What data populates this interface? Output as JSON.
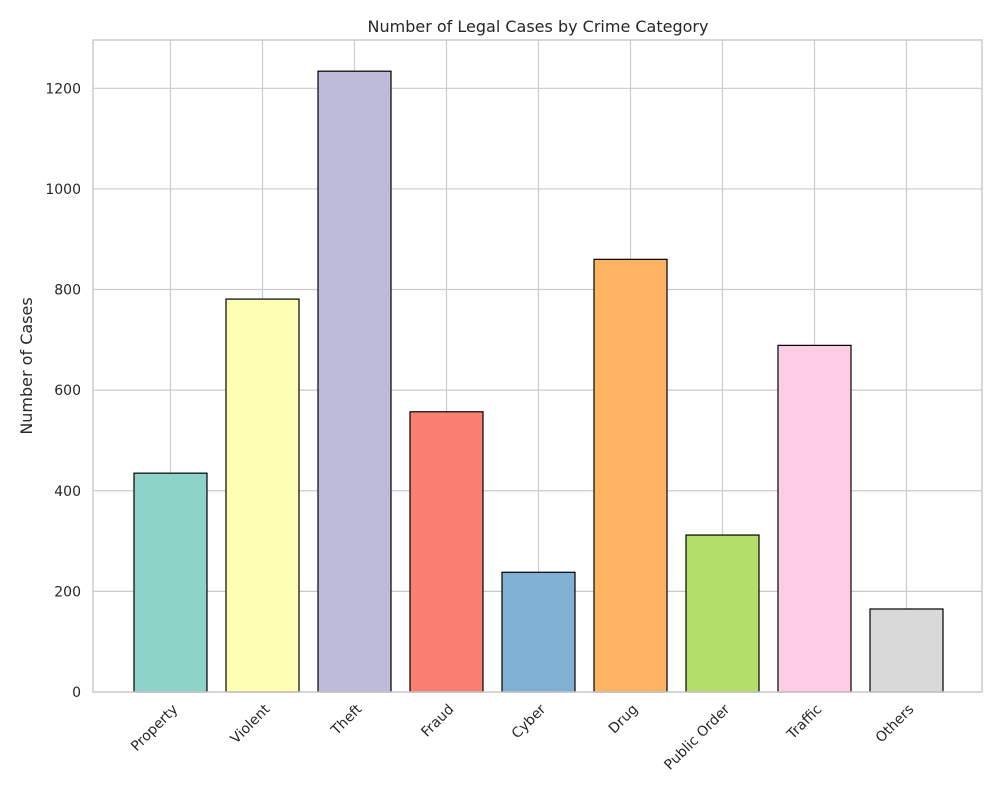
{
  "chart_data": {
    "type": "bar",
    "title": "Number of Legal Cases by Crime Category",
    "xlabel": "",
    "ylabel": "Number of Cases",
    "categories": [
      "Property",
      "Violent",
      "Theft",
      "Fraud",
      "Cyber",
      "Drug",
      "Public Order",
      "Traffic",
      "Others"
    ],
    "values": [
      435,
      781,
      1234,
      557,
      238,
      860,
      312,
      689,
      165
    ],
    "colors": [
      "#8dd3c7",
      "#ffffb3",
      "#bebada",
      "#fb8072",
      "#80b1d3",
      "#fdb462",
      "#b3de69",
      "#fccde5",
      "#d9d9d9"
    ],
    "ylim": [
      0,
      1296
    ],
    "yticks": [
      0,
      200,
      400,
      600,
      800,
      1000,
      1200
    ],
    "grid": true,
    "legend": "none"
  }
}
